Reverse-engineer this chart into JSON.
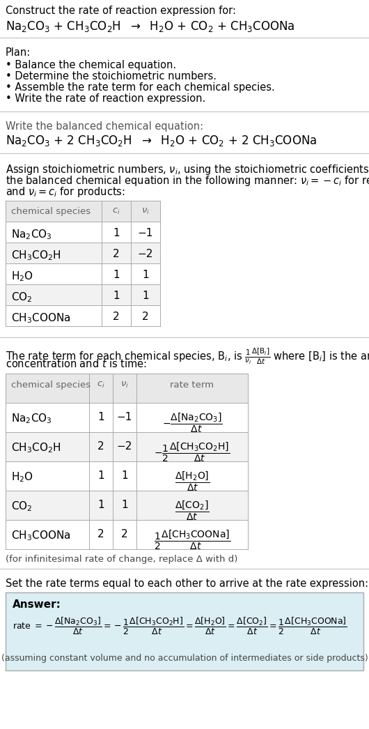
{
  "title_line1": "Construct the rate of reaction expression for:",
  "title_line2": "Na$_2$CO$_3$ + CH$_3$CO$_2$H  $\\rightarrow$  H$_2$O + CO$_2$ + CH$_3$COONa",
  "plan_header": "Plan:",
  "plan_items": [
    "• Balance the chemical equation.",
    "• Determine the stoichiometric numbers.",
    "• Assemble the rate term for each chemical species.",
    "• Write the rate of reaction expression."
  ],
  "balanced_header": "Write the balanced chemical equation:",
  "balanced_eq": "Na$_2$CO$_3$ + 2 CH$_3$CO$_2$H  $\\rightarrow$  H$_2$O + CO$_2$ + 2 CH$_3$COONa",
  "stoich_intro_lines": [
    "Assign stoichiometric numbers, $\\nu_i$, using the stoichiometric coefficients, $c_i$, from",
    "the balanced chemical equation in the following manner: $\\nu_i = -c_i$ for reactants",
    "and $\\nu_i = c_i$ for products:"
  ],
  "table1_col_headers": [
    "chemical species",
    "$c_i$",
    "$\\nu_i$"
  ],
  "table1_rows": [
    [
      "Na$_2$CO$_3$",
      "1",
      "−1"
    ],
    [
      "CH$_3$CO$_2$H",
      "2",
      "−2"
    ],
    [
      "H$_2$O",
      "1",
      "1"
    ],
    [
      "CO$_2$",
      "1",
      "1"
    ],
    [
      "CH$_3$COONa",
      "2",
      "2"
    ]
  ],
  "rate_intro_lines": [
    "The rate term for each chemical species, B$_i$, is $\\frac{1}{\\nu_i}\\frac{\\Delta[\\mathrm{B}_i]}{\\Delta t}$ where [B$_i$] is the amount",
    "concentration and $t$ is time:"
  ],
  "table2_col_headers": [
    "chemical species",
    "$c_i$",
    "$\\nu_i$",
    "rate term"
  ],
  "table2_rows": [
    [
      "Na$_2$CO$_3$",
      "1",
      "−1",
      "$-\\dfrac{\\Delta[\\mathrm{Na_2CO_3}]}{\\Delta t}$"
    ],
    [
      "CH$_3$CO$_2$H",
      "2",
      "−2",
      "$-\\dfrac{1}{2}\\dfrac{\\Delta[\\mathrm{CH_3CO_2H}]}{\\Delta t}$"
    ],
    [
      "H$_2$O",
      "1",
      "1",
      "$\\dfrac{\\Delta[\\mathrm{H_2O}]}{\\Delta t}$"
    ],
    [
      "CO$_2$",
      "1",
      "1",
      "$\\dfrac{\\Delta[\\mathrm{CO_2}]}{\\Delta t}$"
    ],
    [
      "CH$_3$COONa",
      "2",
      "2",
      "$\\dfrac{1}{2}\\dfrac{\\Delta[\\mathrm{CH_3COONa}]}{\\Delta t}$"
    ]
  ],
  "infinitesimal_note": "(for infinitesimal rate of change, replace Δ with d)",
  "set_equal_text": "Set the rate terms equal to each other to arrive at the rate expression:",
  "answer_label": "Answer:",
  "answer_rate": "rate $= -\\dfrac{\\Delta[\\mathrm{Na_2CO_3}]}{\\Delta t} = -\\dfrac{1}{2}\\dfrac{\\Delta[\\mathrm{CH_3CO_2H}]}{\\Delta t} = \\dfrac{\\Delta[\\mathrm{H_2O}]}{\\Delta t} = \\dfrac{\\Delta[\\mathrm{CO_2}]}{\\Delta t} = \\dfrac{1}{2}\\dfrac{\\Delta[\\mathrm{CH_3COONa}]}{\\Delta t}$",
  "answer_note": "(assuming constant volume and no accumulation of intermediates or side products)",
  "bg_color": "#ffffff",
  "table_header_bg": "#e8e8e8",
  "answer_box_bg": "#daeef3",
  "table_border_color": "#aaaaaa",
  "sep_color": "#bbbbbb",
  "header_text_color": "#666666"
}
